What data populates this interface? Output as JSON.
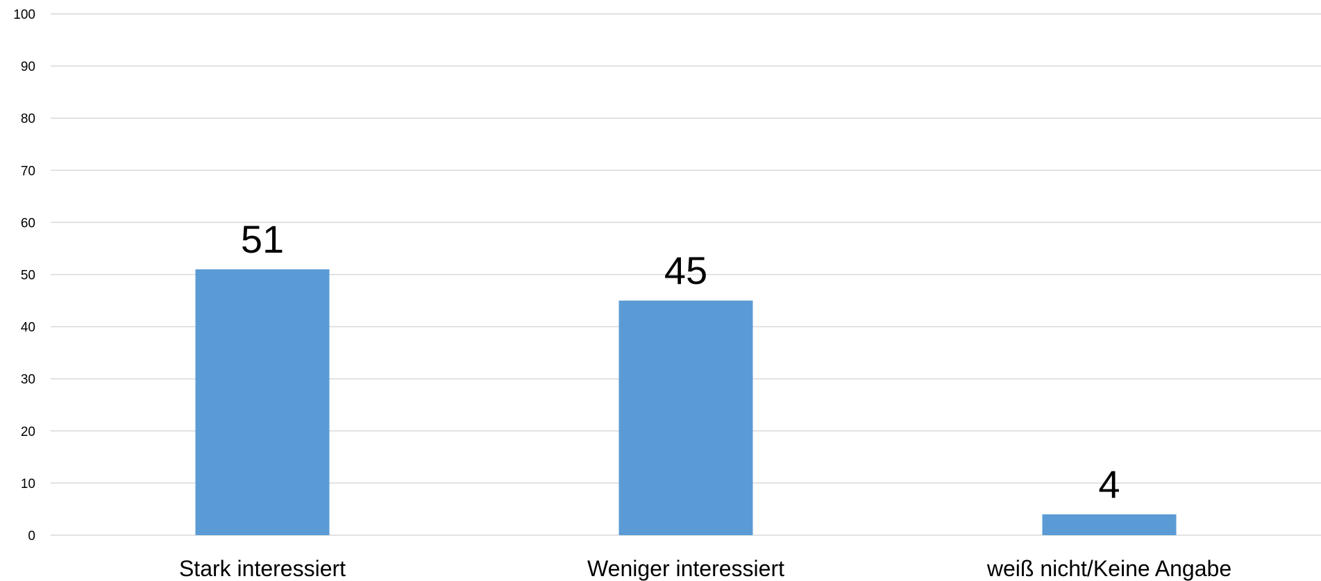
{
  "chart_data": {
    "type": "bar",
    "title": "",
    "xlabel": "",
    "ylabel": "",
    "categories": [
      "Stark interessiert",
      "Weniger interessiert",
      "weiß nicht/Keine Angabe"
    ],
    "values": [
      51,
      45,
      4
    ],
    "data_labels": [
      "51",
      "45",
      "4"
    ],
    "ylim": [
      0,
      100
    ],
    "yticks": [
      0,
      10,
      20,
      30,
      40,
      50,
      60,
      70,
      80,
      90,
      100
    ],
    "ytick_labels": [
      "0",
      "10",
      "20",
      "30",
      "40",
      "50",
      "60",
      "70",
      "80",
      "90",
      "100"
    ],
    "bar_color": "#5b9bd5",
    "grid": true,
    "legend": "none"
  }
}
